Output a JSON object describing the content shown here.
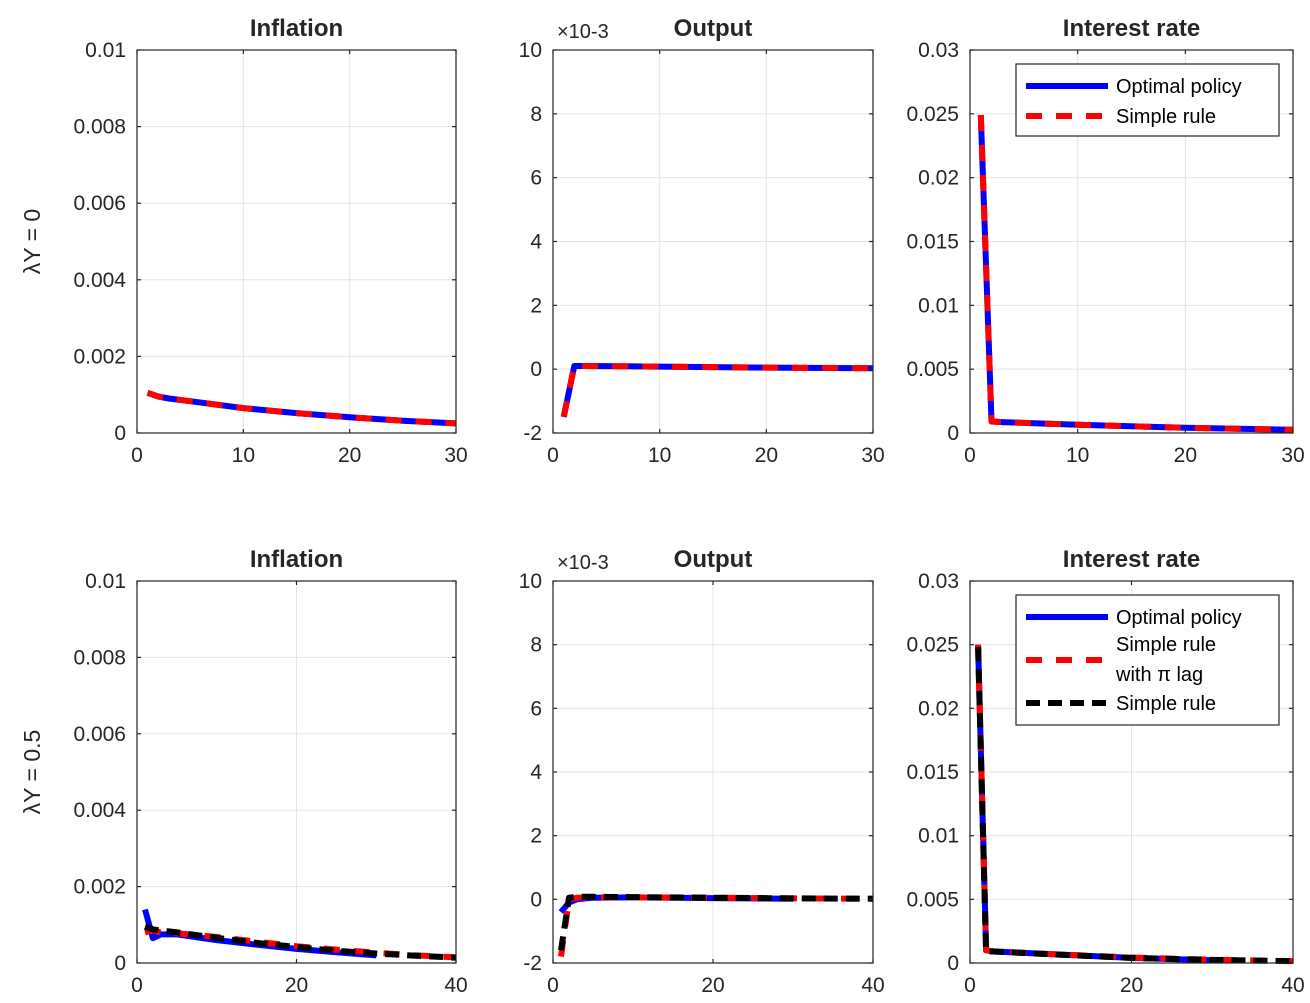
{
  "chart_data": [
    {
      "type": "line",
      "row": 0,
      "title": "Inflation",
      "ylabel": "λY = 0",
      "yexponent": "",
      "xlim": [
        0,
        30
      ],
      "ylim": [
        0,
        0.01
      ],
      "xticks": [
        "0",
        "10",
        "20",
        "30"
      ],
      "yticks": [
        "0",
        "0.002",
        "0.004",
        "0.006",
        "0.008",
        "0.01"
      ],
      "grid": true,
      "legend": [],
      "series": [
        {
          "style": "optimal",
          "x": [
            1,
            2,
            3,
            5,
            10,
            15,
            20,
            25,
            30
          ],
          "y": [
            0.00105,
            0.00095,
            0.0009,
            0.00083,
            0.00065,
            0.00052,
            0.00041,
            0.00032,
            0.00025
          ]
        },
        {
          "style": "simple",
          "x": [
            1,
            2,
            3,
            5,
            10,
            15,
            20,
            25,
            30
          ],
          "y": [
            0.00105,
            0.00095,
            0.0009,
            0.00083,
            0.00065,
            0.00052,
            0.00041,
            0.00032,
            0.00025
          ]
        }
      ]
    },
    {
      "type": "line",
      "row": 0,
      "title": "Output",
      "ylabel": "",
      "yexponent": "×10-3",
      "xlim": [
        0,
        30
      ],
      "ylim": [
        -2,
        10
      ],
      "xticks": [
        "0",
        "10",
        "20",
        "30"
      ],
      "yticks": [
        "-2",
        "0",
        "2",
        "4",
        "6",
        "8",
        "10"
      ],
      "grid": true,
      "legend": [],
      "series": [
        {
          "style": "optimal",
          "x": [
            1,
            2,
            3,
            10,
            20,
            30
          ],
          "y": [
            -1.5,
            0.1,
            0.1,
            0.08,
            0.05,
            0.03
          ]
        },
        {
          "style": "simple",
          "x": [
            1,
            2,
            3,
            10,
            20,
            30
          ],
          "y": [
            -1.5,
            0.1,
            0.1,
            0.08,
            0.05,
            0.03
          ]
        }
      ]
    },
    {
      "type": "line",
      "row": 0,
      "title": "Interest rate",
      "ylabel": "",
      "yexponent": "",
      "xlim": [
        0,
        30
      ],
      "ylim": [
        0,
        0.03
      ],
      "xticks": [
        "0",
        "10",
        "20",
        "30"
      ],
      "yticks": [
        "0",
        "0.005",
        "0.01",
        "0.015",
        "0.02",
        "0.025",
        "0.03"
      ],
      "grid": true,
      "legend": [
        "Optimal policy",
        "Simple rule"
      ],
      "series": [
        {
          "style": "optimal",
          "x": [
            1,
            2,
            3,
            10,
            20,
            30
          ],
          "y": [
            0.0249,
            0.0009,
            0.00085,
            0.00065,
            0.00041,
            0.00025
          ]
        },
        {
          "style": "simple",
          "x": [
            1,
            2,
            3,
            10,
            20,
            30
          ],
          "y": [
            0.0249,
            0.0009,
            0.00085,
            0.00065,
            0.00041,
            0.00025
          ]
        }
      ]
    },
    {
      "type": "line",
      "row": 1,
      "title": "Inflation",
      "ylabel": "λY = 0.5",
      "yexponent": "",
      "xlim": [
        0,
        40
      ],
      "ylim": [
        0,
        0.01
      ],
      "xticks": [
        "0",
        "20",
        "40"
      ],
      "yticks": [
        "0",
        "0.002",
        "0.004",
        "0.006",
        "0.008",
        "0.01"
      ],
      "grid": true,
      "legend": [],
      "series": [
        {
          "style": "optimal",
          "x": [
            1,
            2,
            3,
            5,
            10,
            15,
            20,
            25,
            30
          ],
          "y": [
            0.0014,
            0.00065,
            0.00075,
            0.00075,
            0.0006,
            0.00048,
            0.00037,
            0.00028,
            0.0002
          ]
        },
        {
          "style": "simple-lag",
          "x": [
            1,
            2,
            3,
            5,
            10,
            15,
            20,
            25,
            30,
            35,
            40
          ],
          "y": [
            0.0008,
            0.00085,
            0.0008,
            0.00078,
            0.00068,
            0.00056,
            0.00044,
            0.00035,
            0.00027,
            0.0002,
            0.00015
          ]
        },
        {
          "style": "simple-black",
          "x": [
            1,
            2,
            3,
            5,
            10,
            15,
            20,
            25,
            30,
            35,
            40
          ],
          "y": [
            0.00095,
            0.00088,
            0.00085,
            0.0008,
            0.00066,
            0.00053,
            0.00042,
            0.00032,
            0.00025,
            0.00019,
            0.00014
          ]
        }
      ]
    },
    {
      "type": "line",
      "row": 1,
      "title": "Output",
      "ylabel": "",
      "yexponent": "×10-3",
      "xlim": [
        0,
        40
      ],
      "ylim": [
        -2,
        10
      ],
      "xticks": [
        "0",
        "20",
        "40"
      ],
      "yticks": [
        "-2",
        "0",
        "2",
        "4",
        "6",
        "8",
        "10"
      ],
      "grid": true,
      "legend": [],
      "series": [
        {
          "style": "optimal",
          "x": [
            1,
            2,
            3,
            5,
            10,
            20,
            30
          ],
          "y": [
            -0.4,
            -0.1,
            0.0,
            0.05,
            0.06,
            0.04,
            0.02
          ]
        },
        {
          "style": "simple-lag",
          "x": [
            1,
            2,
            3,
            5,
            10,
            20,
            30,
            40
          ],
          "y": [
            -1.8,
            0.0,
            0.05,
            0.06,
            0.06,
            0.05,
            0.03,
            0.02
          ]
        },
        {
          "style": "simple-black",
          "x": [
            1,
            2,
            3,
            5,
            10,
            20,
            30,
            40
          ],
          "y": [
            -1.6,
            0.05,
            0.08,
            0.08,
            0.07,
            0.05,
            0.03,
            0.02
          ]
        }
      ]
    },
    {
      "type": "line",
      "row": 1,
      "title": "Interest rate",
      "ylabel": "",
      "yexponent": "",
      "xlim": [
        0,
        40
      ],
      "ylim": [
        0,
        0.03
      ],
      "xticks": [
        "0",
        "20",
        "40"
      ],
      "yticks": [
        "0",
        "0.005",
        "0.01",
        "0.015",
        "0.02",
        "0.025",
        "0.03"
      ],
      "grid": true,
      "legend": [
        "Optimal policy",
        "Simple rule",
        "with π lag",
        "Simple rule"
      ],
      "series": [
        {
          "style": "optimal",
          "x": [
            1,
            2,
            3,
            10,
            20,
            30
          ],
          "y": [
            0.025,
            0.001,
            0.0009,
            0.0007,
            0.0004,
            0.00022
          ]
        },
        {
          "style": "simple-lag",
          "x": [
            1,
            2,
            3,
            10,
            20,
            30,
            40
          ],
          "y": [
            0.025,
            0.001,
            0.0009,
            0.0007,
            0.00043,
            0.00026,
            0.00015
          ]
        },
        {
          "style": "simple-black",
          "x": [
            1,
            2,
            3,
            10,
            20,
            30,
            40
          ],
          "y": [
            0.0248,
            0.0009,
            0.0009,
            0.00068,
            0.0004,
            0.00024,
            0.00014
          ]
        }
      ]
    }
  ],
  "colors": {
    "optimal": "#0000ff",
    "simple": "#ff0000",
    "black": "#000000",
    "grid": "#e5e5e5",
    "axis": "#262626"
  }
}
